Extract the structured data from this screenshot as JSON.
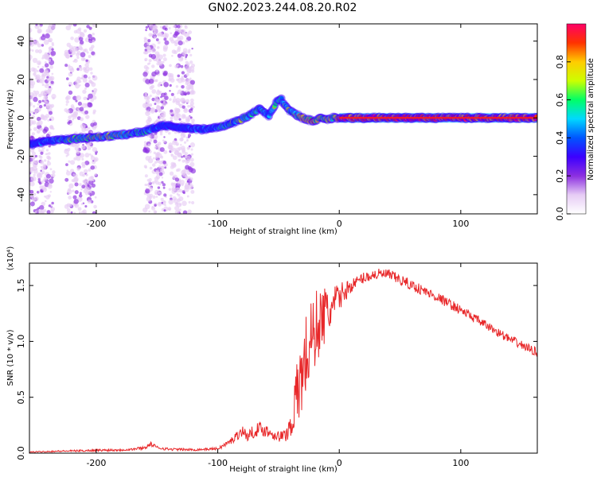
{
  "title": "GN02.2023.244.08.20.R02",
  "chart_data": [
    {
      "type": "heatmap",
      "title": "GN02.2023.244.08.20.R02",
      "xlabel": "Height of straight line (km)",
      "ylabel": "Frequency (Hz)",
      "xlim": [
        -255,
        163
      ],
      "ylim": [
        -50,
        49
      ],
      "xticks": [
        -200,
        -100,
        0,
        100
      ],
      "yticks": [
        -40,
        -20,
        0,
        20,
        40
      ],
      "grid": false,
      "colorbar": {
        "label": "Normalized spectral amplitude",
        "range": [
          0,
          1
        ],
        "ticks": [
          "0.0",
          "0.2",
          "0.4",
          "0.6",
          "0.8"
        ],
        "colors": [
          "#ffffff",
          "#e6ccf5",
          "#8c2fe0",
          "#3c00ff",
          "#0055ff",
          "#00d9ff",
          "#00ff66",
          "#ccff00",
          "#ffcc00",
          "#ff3300",
          "#ff0066"
        ]
      },
      "ridge": {
        "x": [
          -255,
          -240,
          -220,
          -200,
          -180,
          -160,
          -145,
          -130,
          -115,
          -100,
          -85,
          -75,
          -65,
          -58,
          -52,
          -48,
          -42,
          -36,
          -30,
          -25,
          -20,
          -15,
          -10,
          -5,
          0,
          163
        ],
        "y": [
          -14,
          -12,
          -11,
          -10,
          -9,
          -7,
          -4,
          -5,
          -6,
          -5,
          -2,
          1,
          5,
          1,
          8,
          10,
          4,
          2,
          0,
          -1,
          -2,
          0,
          -1,
          0,
          0,
          0
        ],
        "amplitude": [
          0.3,
          0.4,
          0.55,
          0.65,
          0.6,
          0.5,
          0.3,
          0.3,
          0.35,
          0.45,
          0.55,
          0.55,
          0.5,
          0.4,
          0.55,
          0.5,
          0.6,
          0.55,
          0.7,
          0.75,
          0.75,
          0.7,
          0.6,
          0.7,
          0.9,
          0.9
        ]
      },
      "noise_regions": [
        [
          -255,
          -235
        ],
        [
          -225,
          -200
        ],
        [
          -160,
          -142
        ],
        [
          -140,
          -120
        ]
      ]
    },
    {
      "type": "line",
      "xlabel": "Height of straight line (km)",
      "ylabel": "SNR (10 * v/v)",
      "y_multiplier": "(x10⁴)",
      "xlim": [
        -255,
        163
      ],
      "ylim": [
        0,
        1.7
      ],
      "xticks": [
        -200,
        -100,
        0,
        100
      ],
      "yticks": [
        "0.0",
        "0.5",
        "1.0",
        "1.5"
      ],
      "grid": false,
      "series": [
        {
          "color": "#e8282a",
          "x": [
            -255,
            -240,
            -220,
            -200,
            -180,
            -170,
            -160,
            -155,
            -150,
            -140,
            -120,
            -100,
            -90,
            -80,
            -75,
            -70,
            -65,
            -60,
            -50,
            -45,
            -40,
            -35,
            -30,
            -25,
            -20,
            -15,
            -10,
            -5,
            0,
            10,
            20,
            30,
            40,
            50,
            60,
            80,
            100,
            120,
            140,
            163
          ],
          "y": [
            0.01,
            0.015,
            0.02,
            0.025,
            0.03,
            0.035,
            0.05,
            0.08,
            0.05,
            0.035,
            0.03,
            0.04,
            0.1,
            0.2,
            0.15,
            0.2,
            0.22,
            0.2,
            0.15,
            0.15,
            0.25,
            0.5,
            0.75,
            0.95,
            1.1,
            1.2,
            1.25,
            1.3,
            1.4,
            1.5,
            1.57,
            1.6,
            1.6,
            1.55,
            1.5,
            1.4,
            1.28,
            1.15,
            1.02,
            0.9
          ],
          "noise": [
            0.005,
            0.006,
            0.008,
            0.01,
            0.012,
            0.012,
            0.015,
            0.02,
            0.015,
            0.012,
            0.01,
            0.012,
            0.03,
            0.05,
            0.05,
            0.06,
            0.06,
            0.06,
            0.05,
            0.06,
            0.12,
            0.3,
            0.4,
            0.4,
            0.35,
            0.3,
            0.25,
            0.2,
            0.12,
            0.06,
            0.05,
            0.05,
            0.05,
            0.05,
            0.05,
            0.045,
            0.045,
            0.04,
            0.04,
            0.04
          ]
        }
      ]
    }
  ]
}
